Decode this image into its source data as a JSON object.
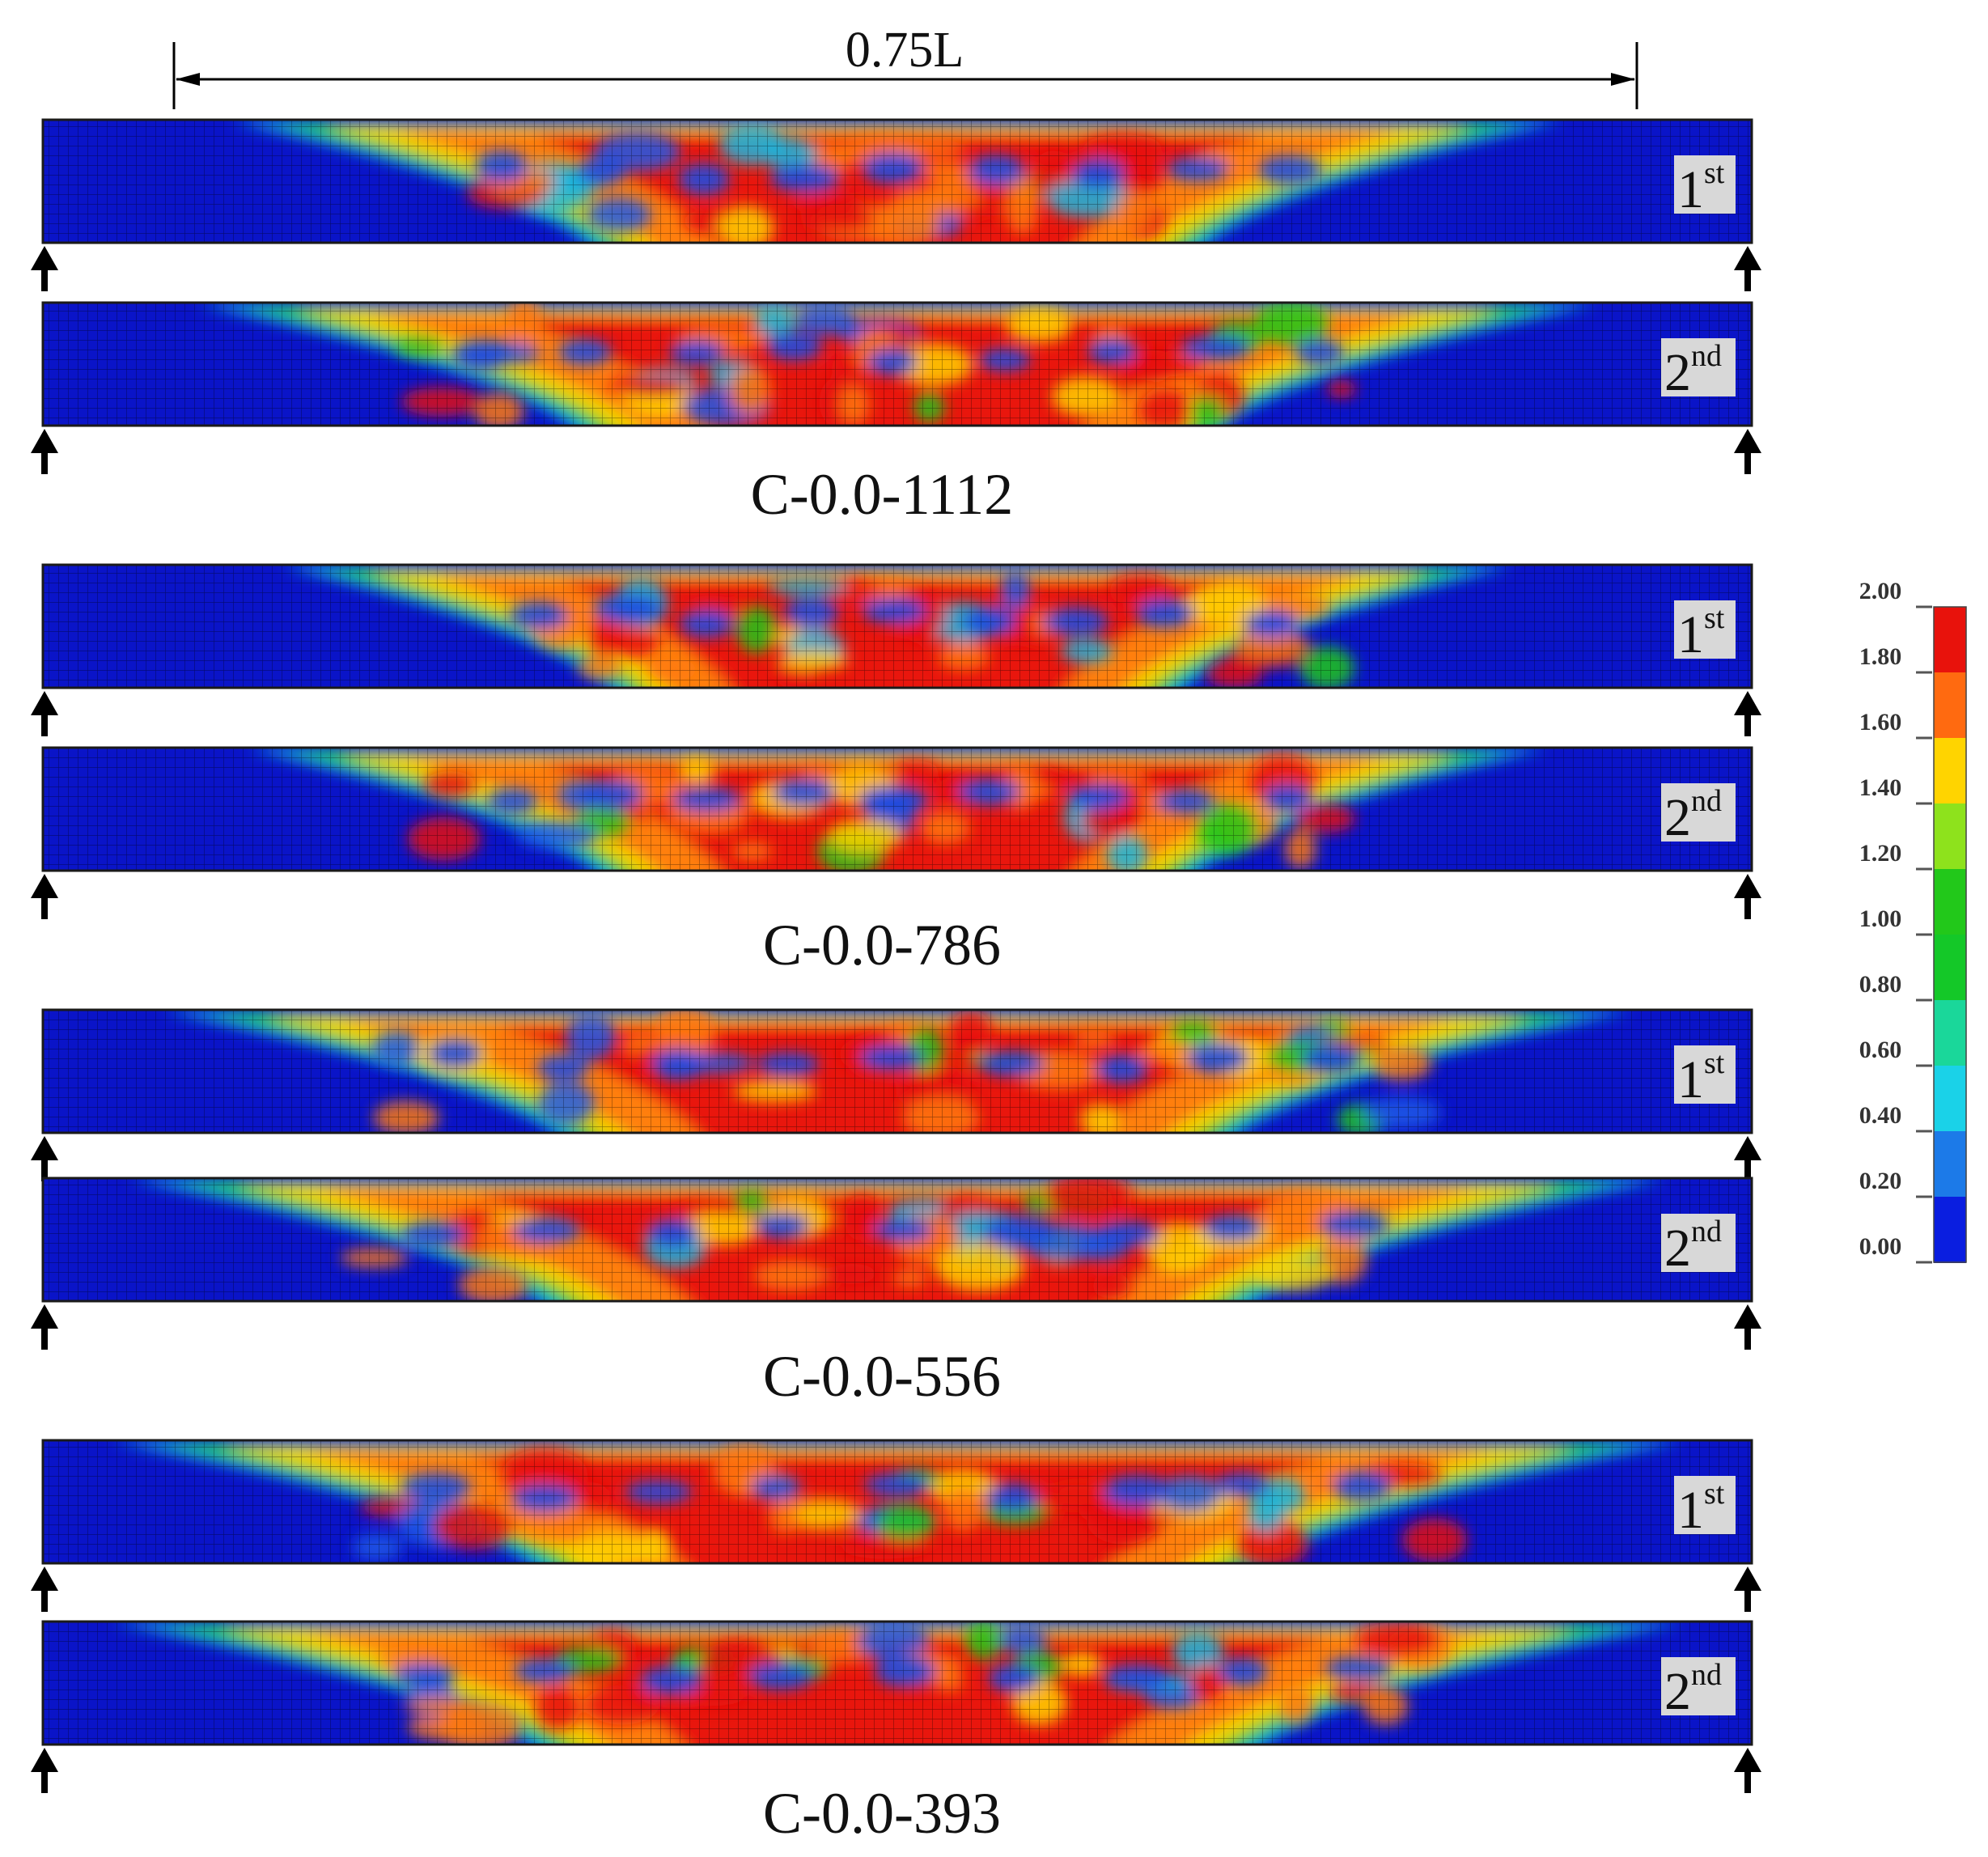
{
  "dimension": {
    "label": "0.75L"
  },
  "groups": [
    {
      "label": "C-0.0-1112",
      "beams": [
        {
          "ordinal": "1",
          "suffix": "st"
        },
        {
          "ordinal": "2",
          "suffix": "nd"
        }
      ]
    },
    {
      "label": "C-0.0-786",
      "beams": [
        {
          "ordinal": "1",
          "suffix": "st"
        },
        {
          "ordinal": "2",
          "suffix": "nd"
        }
      ]
    },
    {
      "label": "C-0.0-556",
      "beams": [
        {
          "ordinal": "1",
          "suffix": "st"
        },
        {
          "ordinal": "2",
          "suffix": "nd"
        }
      ]
    },
    {
      "label": "C-0.0-393",
      "beams": [
        {
          "ordinal": "1",
          "suffix": "st"
        },
        {
          "ordinal": "2",
          "suffix": "nd"
        }
      ]
    }
  ],
  "colorbar": {
    "ticks": [
      "2.00",
      "1.80",
      "1.60",
      "1.40",
      "1.20",
      "1.00",
      "0.80",
      "0.60",
      "0.40",
      "0.20",
      "0.00"
    ],
    "colors_top_to_bottom": [
      "#e8120c",
      "#ff6a10",
      "#ffd400",
      "#8ee21c",
      "#22c81a",
      "#14c828",
      "#1ad79a",
      "#1ad2e8",
      "#1c7ae8",
      "#0a1ee0"
    ]
  }
}
